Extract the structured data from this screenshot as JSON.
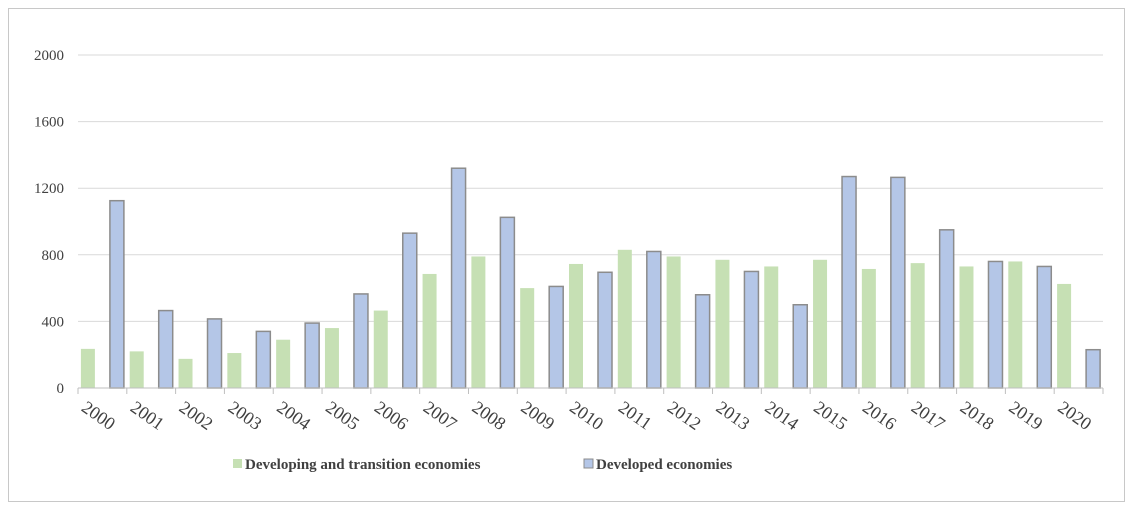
{
  "chart_data": {
    "type": "bar",
    "title": "",
    "xlabel": "",
    "ylabel": "",
    "ylim": [
      0,
      2000
    ],
    "yticks": [
      0,
      400,
      800,
      1200,
      1600,
      2000
    ],
    "grid": true,
    "legend_position": "bottom",
    "categories": [
      "2000",
      "2001",
      "2002",
      "2003",
      "2004",
      "2005",
      "2006",
      "2007",
      "2008",
      "2009",
      "2010",
      "2011",
      "2012",
      "2013",
      "2014",
      "2015",
      "2016",
      "2017",
      "2018",
      "2019",
      "2020"
    ],
    "series": [
      {
        "name": "Developing and transition economies",
        "color": "#c6e0b4",
        "values": [
          235,
          220,
          175,
          210,
          290,
          360,
          465,
          685,
          790,
          600,
          745,
          830,
          790,
          770,
          730,
          770,
          715,
          750,
          730,
          760,
          625
        ]
      },
      {
        "name": "Developed economies",
        "color": "#b4c6e7",
        "values": [
          1125,
          465,
          415,
          340,
          390,
          565,
          930,
          1320,
          1025,
          610,
          695,
          820,
          560,
          700,
          500,
          1270,
          1265,
          950,
          760,
          730,
          230
        ]
      }
    ]
  }
}
